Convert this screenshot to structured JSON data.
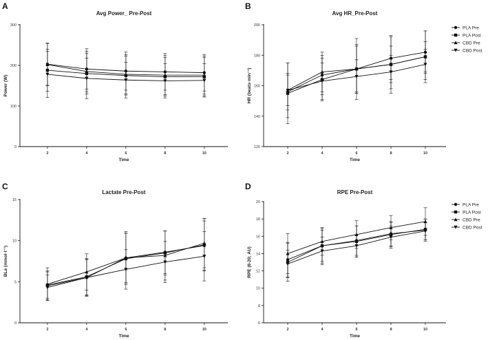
{
  "chart_data": [
    {
      "letter": "A",
      "type": "line",
      "title": "Avg Power_ Pre-Post",
      "xlabel": "Time",
      "ylabel": "Power (W)",
      "x": [
        2,
        4,
        6,
        8,
        10
      ],
      "xlim": [
        0.6,
        11.2
      ],
      "ylim": [
        0,
        300
      ],
      "yticks": [
        0,
        100,
        200,
        300
      ],
      "legend": false,
      "series": [
        {
          "name": "PLA Pre",
          "marker": "circle",
          "values": [
            203,
            191,
            186,
            184,
            182
          ],
          "err": [
            52,
            50,
            47,
            45,
            45
          ]
        },
        {
          "name": "PLA Post",
          "marker": "square",
          "values": [
            188,
            180,
            175,
            172,
            172
          ],
          "err": [
            52,
            50,
            48,
            47,
            47
          ]
        },
        {
          "name": "CBD Pre",
          "marker": "triangle",
          "values": [
            202,
            185,
            178,
            176,
            176
          ],
          "err": [
            52,
            50,
            48,
            48,
            47
          ]
        },
        {
          "name": "CBD Post",
          "marker": "tridown",
          "values": [
            178,
            168,
            164,
            162,
            163
          ],
          "err": [
            57,
            50,
            44,
            42,
            41
          ]
        }
      ]
    },
    {
      "letter": "B",
      "type": "line",
      "title": "Avg HR_Pre-Post",
      "xlabel": "Time",
      "ylabel": "HR (beats·min⁻¹)",
      "x": [
        2,
        4,
        6,
        8,
        10
      ],
      "xlim": [
        0.6,
        11.2
      ],
      "ylim": [
        120,
        200
      ],
      "yticks": [
        120,
        140,
        160,
        180,
        200
      ],
      "legend": true,
      "series": [
        {
          "name": "PLA Pre",
          "marker": "circle",
          "values": [
            156,
            167,
            171,
            178,
            182
          ],
          "err": [
            12,
            13,
            16,
            14,
            14
          ]
        },
        {
          "name": "PLA Post",
          "marker": "square",
          "values": [
            155,
            164,
            171,
            174,
            179
          ],
          "err": [
            20,
            14,
            20,
            19,
            17
          ]
        },
        {
          "name": "CBD Pre",
          "marker": "triangle",
          "values": [
            157,
            169,
            171,
            174,
            179
          ],
          "err": [
            18,
            13,
            15,
            12,
            10
          ]
        },
        {
          "name": "CBD Post",
          "marker": "tridown",
          "values": [
            157,
            163,
            166,
            169,
            174
          ],
          "err": [
            10,
            12,
            11,
            11,
            10
          ]
        }
      ]
    },
    {
      "letter": "C",
      "type": "line",
      "title": "Lactate Pre-Post",
      "xlabel": "Time",
      "ylabel": "BLa (mmol·l⁻¹)",
      "x": [
        2,
        4,
        6,
        8,
        10
      ],
      "xlim": [
        0.6,
        11.2
      ],
      "ylim": [
        0,
        15
      ],
      "yticks": [
        0,
        5,
        10,
        15
      ],
      "legend": false,
      "series": [
        {
          "name": "PLA Pre",
          "marker": "circle",
          "values": [
            4.5,
            5.5,
            7.9,
            8.6,
            9.4
          ],
          "err": [
            1.8,
            2.3,
            3.0,
            2.6,
            3.0
          ]
        },
        {
          "name": "PLA Post",
          "marker": "square",
          "values": [
            4.6,
            5.6,
            7.8,
            8.5,
            9.5
          ],
          "err": [
            1.6,
            2.2,
            3.1,
            2.7,
            3.2
          ]
        },
        {
          "name": "CBD Pre",
          "marker": "triangle",
          "values": [
            4.7,
            6.2,
            7.9,
            8.2,
            9.7
          ],
          "err": [
            2.0,
            2.2,
            3.2,
            3.0,
            3.0
          ]
        },
        {
          "name": "CBD Post",
          "marker": "tridown",
          "values": [
            4.3,
            5.5,
            6.5,
            7.4,
            8.1
          ],
          "err": [
            1.5,
            2.2,
            2.4,
            2.5,
            3.0
          ]
        }
      ]
    },
    {
      "letter": "D",
      "type": "line",
      "title": "RPE Pre-Post",
      "xlabel": "Time",
      "ylabel": "RPE (6-20; AU)",
      "x": [
        2,
        4,
        6,
        8,
        10
      ],
      "xlim": [
        0.6,
        11.2
      ],
      "ylim": [
        6,
        20
      ],
      "yticks": [
        6,
        8,
        10,
        12,
        14,
        16,
        18,
        20
      ],
      "legend": true,
      "series": [
        {
          "name": "PLA Pre",
          "marker": "circle",
          "values": [
            13.3,
            14.9,
            15.5,
            16.3,
            16.7
          ],
          "err": [
            2.0,
            1.8,
            1.7,
            1.4,
            1.3
          ]
        },
        {
          "name": "PLA Post",
          "marker": "square",
          "values": [
            13.0,
            14.9,
            15.4,
            16.2,
            16.8
          ],
          "err": [
            2.2,
            2.0,
            1.8,
            1.4,
            1.2
          ]
        },
        {
          "name": "CBD Pre",
          "marker": "triangle",
          "values": [
            14.0,
            15.4,
            16.2,
            17.0,
            17.7
          ],
          "err": [
            2.3,
            1.6,
            1.6,
            1.4,
            1.6
          ]
        },
        {
          "name": "CBD Post",
          "marker": "tridown",
          "values": [
            12.8,
            14.3,
            14.9,
            15.9,
            16.6
          ],
          "err": [
            1.6,
            1.6,
            1.3,
            1.3,
            1.0
          ]
        }
      ]
    }
  ]
}
